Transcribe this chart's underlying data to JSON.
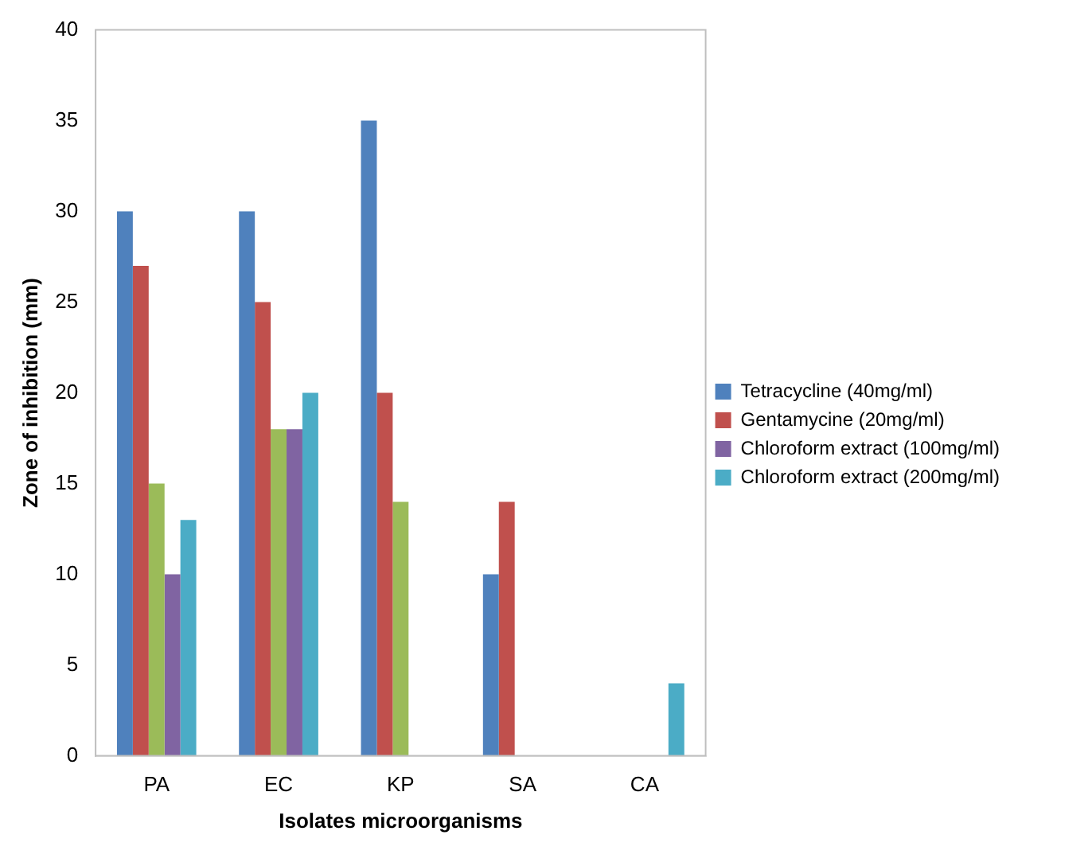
{
  "chart_data": {
    "type": "bar",
    "xlabel": "Isolates microorganisms",
    "ylabel": "Zone of inhibition (mm)",
    "categories": [
      "PA",
      "EC",
      "KP",
      "SA",
      "CA"
    ],
    "series": [
      {
        "name": "Tetracycline (40mg/ml)",
        "color": "#4f81bd",
        "values": [
          30,
          30,
          35,
          10,
          0
        ]
      },
      {
        "name": "Gentamycine (20mg/ml)",
        "color": "#c0504d",
        "values": [
          27,
          25,
          20,
          14,
          0
        ]
      },
      {
        "color": "#9bbb59",
        "values": [
          15,
          18,
          14,
          0,
          0
        ]
      },
      {
        "name": "Chloroform extract (100mg/ml)",
        "color": "#8064a2",
        "values": [
          10,
          18,
          0,
          0,
          0
        ]
      },
      {
        "name": "Chloroform extract (200mg/ml)",
        "color": "#4bacc6",
        "values": [
          13,
          20,
          0,
          0,
          4
        ]
      }
    ],
    "ylim": [
      0,
      40
    ],
    "yticks": [
      0,
      5,
      10,
      15,
      20,
      25,
      30,
      35,
      40
    ],
    "grid": false,
    "legend": "right"
  }
}
